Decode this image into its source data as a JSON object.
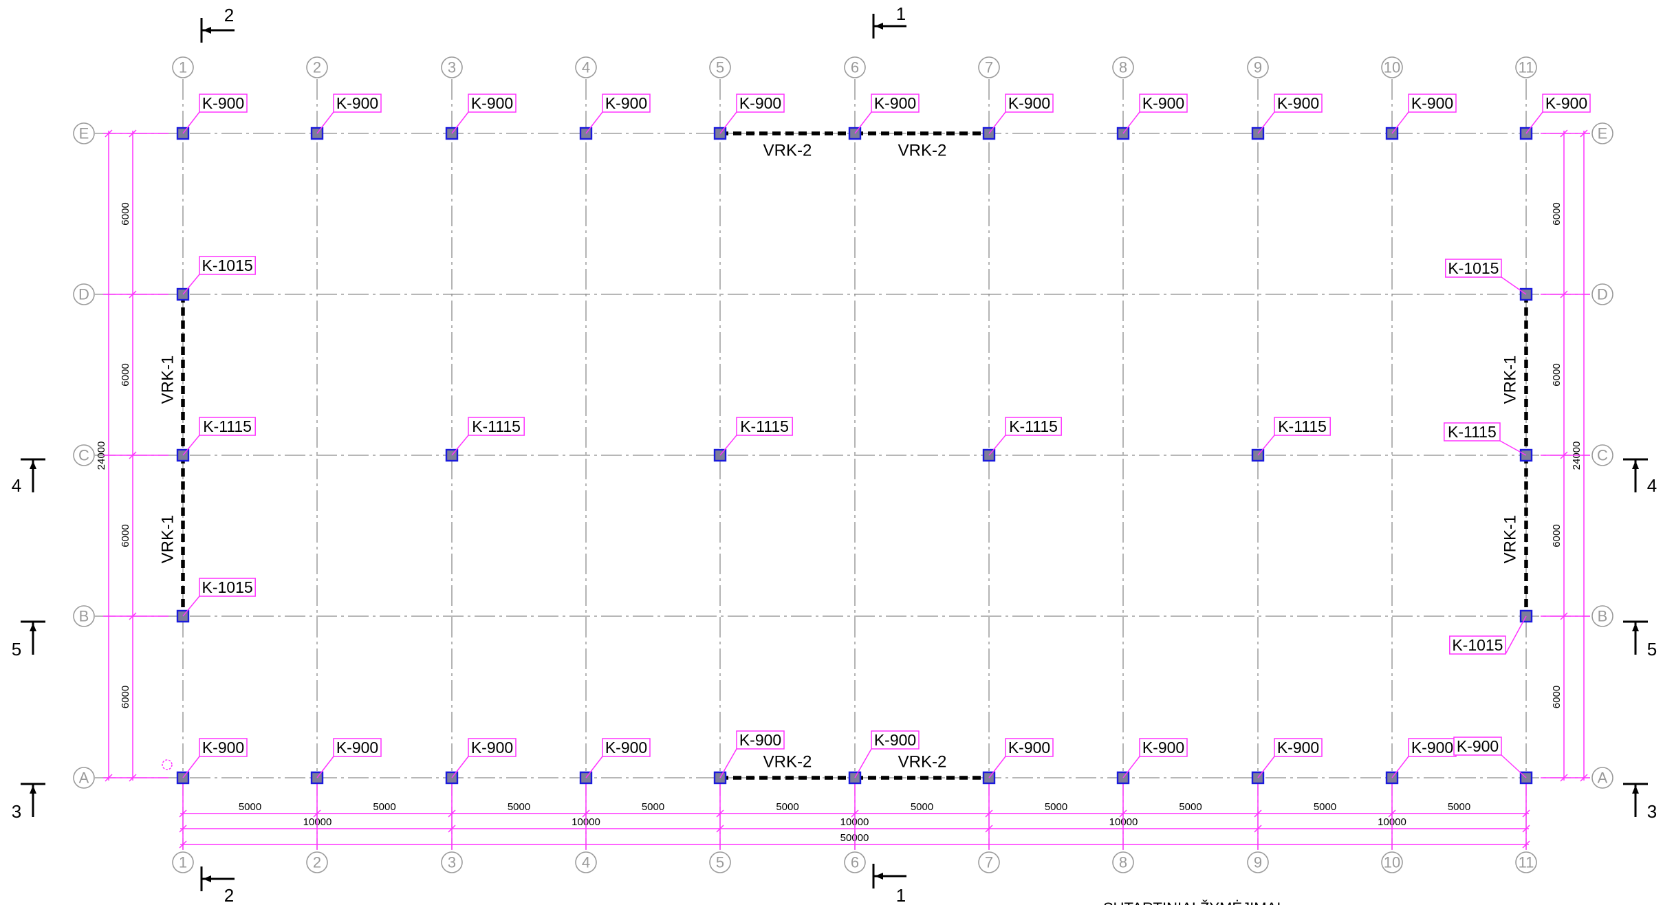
{
  "grid": {
    "columns": [
      "1",
      "2",
      "3",
      "4",
      "5",
      "6",
      "7",
      "8",
      "9",
      "10",
      "11"
    ],
    "rows": [
      "E",
      "D",
      "C",
      "B",
      "A"
    ]
  },
  "column_tags": [
    {
      "id": "E1",
      "label": "K-900"
    },
    {
      "id": "E2",
      "label": "K-900"
    },
    {
      "id": "E3",
      "label": "K-900"
    },
    {
      "id": "E4",
      "label": "K-900"
    },
    {
      "id": "E5",
      "label": "K-900"
    },
    {
      "id": "E6",
      "label": "K-900"
    },
    {
      "id": "E7",
      "label": "K-900"
    },
    {
      "id": "E8",
      "label": "K-900"
    },
    {
      "id": "E9",
      "label": "K-900"
    },
    {
      "id": "E10",
      "label": "K-900"
    },
    {
      "id": "E11",
      "label": "K-900"
    },
    {
      "id": "D1",
      "label": "K-1015"
    },
    {
      "id": "D11",
      "label": "K-1015"
    },
    {
      "id": "C1",
      "label": "K-1115"
    },
    {
      "id": "C3",
      "label": "K-1115"
    },
    {
      "id": "C5",
      "label": "K-1115"
    },
    {
      "id": "C7",
      "label": "K-1115"
    },
    {
      "id": "C9",
      "label": "K-1115"
    },
    {
      "id": "C11",
      "label": "K-1115"
    },
    {
      "id": "B1",
      "label": "K-1015"
    },
    {
      "id": "B11",
      "label": "K-1015"
    },
    {
      "id": "A1",
      "label": "K-900"
    },
    {
      "id": "A2",
      "label": "K-900"
    },
    {
      "id": "A3",
      "label": "K-900"
    },
    {
      "id": "A4",
      "label": "K-900"
    },
    {
      "id": "A5",
      "label": "K-900"
    },
    {
      "id": "A6",
      "label": "K-900"
    },
    {
      "id": "A7",
      "label": "K-900"
    },
    {
      "id": "A8",
      "label": "K-900"
    },
    {
      "id": "A9",
      "label": "K-900"
    },
    {
      "id": "A10",
      "label": "K-900"
    },
    {
      "id": "A11",
      "label": "K-900"
    }
  ],
  "bracing": [
    {
      "label": "VRK-2"
    },
    {
      "label": "VRK-2"
    },
    {
      "label": "VRK-2"
    },
    {
      "label": "VRK-2"
    },
    {
      "label": "VRK-1"
    },
    {
      "label": "VRK-1"
    },
    {
      "label": "VRK-1"
    },
    {
      "label": "VRK-1"
    }
  ],
  "dimensions": {
    "bay": "5000",
    "double_bay": "10000",
    "total_length": "50000",
    "row_spacing": "6000",
    "total_width": "24000"
  },
  "sections": [
    "1",
    "1",
    "2",
    "2",
    "3",
    "3",
    "4",
    "4",
    "5",
    "5"
  ],
  "note": "SUTARTINIAI ŽYMĖJIMAI",
  "colors": {
    "grid": "#8c8c8c",
    "dimension": "#ff33ff",
    "column_fill": "#7d7d9a",
    "column_stroke": "#1a1adc",
    "bracing": "#000000"
  },
  "icons": [
    "column-marker-icon",
    "section-arrow-icon",
    "origin-marker-icon"
  ]
}
